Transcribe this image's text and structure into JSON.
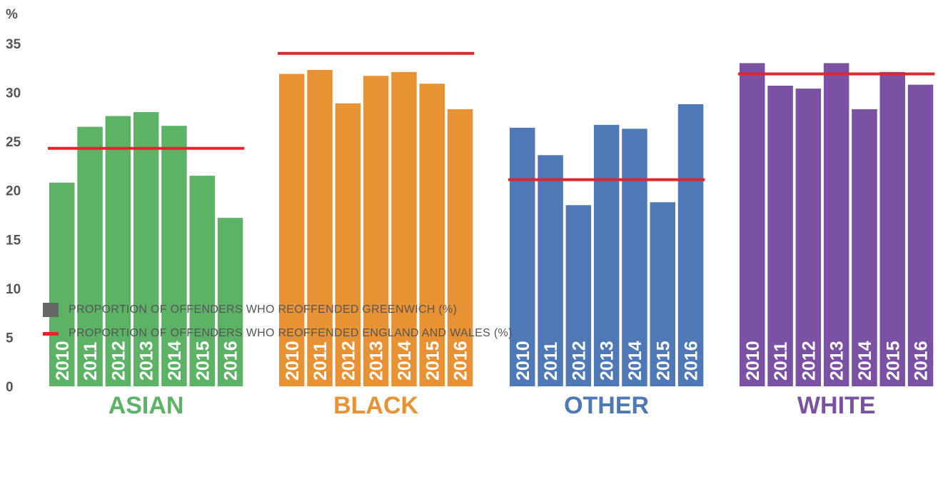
{
  "chart_data": {
    "type": "bar",
    "unit_label": "%",
    "ylim": [
      0,
      35
    ],
    "yticks": [
      0,
      5,
      10,
      15,
      20,
      25,
      30,
      35
    ],
    "groups": [
      {
        "name": "ASIAN",
        "color": "#5cb265",
        "years": [
          "2010",
          "2011",
          "2012",
          "2013",
          "2014",
          "2015",
          "2016"
        ],
        "values": [
          20.8,
          26.5,
          27.6,
          28.0,
          26.6,
          21.5,
          17.2
        ],
        "benchmark": 24.3
      },
      {
        "name": "BLACK",
        "color": "#e99233",
        "years": [
          "2010",
          "2011",
          "2012",
          "2013",
          "2014",
          "2015",
          "2016"
        ],
        "values": [
          31.9,
          32.3,
          28.9,
          31.7,
          32.1,
          30.9,
          28.3
        ],
        "benchmark": 34.0
      },
      {
        "name": "OTHER",
        "color": "#4f79b6",
        "years": [
          "2010",
          "2011",
          "2012",
          "2013",
          "2014",
          "2015",
          "2016"
        ],
        "values": [
          26.4,
          23.6,
          18.5,
          26.7,
          26.3,
          18.8,
          28.8
        ],
        "benchmark": 21.1
      },
      {
        "name": "WHITE",
        "color": "#7b52a3",
        "years": [
          "2010",
          "2011",
          "2012",
          "2013",
          "2014",
          "2015",
          "2016"
        ],
        "values": [
          33.0,
          30.7,
          30.4,
          33.0,
          28.3,
          32.1,
          30.8
        ],
        "benchmark": 31.9
      }
    ],
    "benchmark_color": "#e0252c",
    "legend": [
      {
        "label": "PROPORTION OF OFFENDERS WHO REOFFENDED GREENWICH (%)",
        "color": "#666666",
        "kind": "box"
      },
      {
        "label": "PROPORTION OF OFFENDERS WHO REOFFENDED ENGLAND AND WALES (%)",
        "color": "#e0252c",
        "kind": "line"
      }
    ]
  }
}
